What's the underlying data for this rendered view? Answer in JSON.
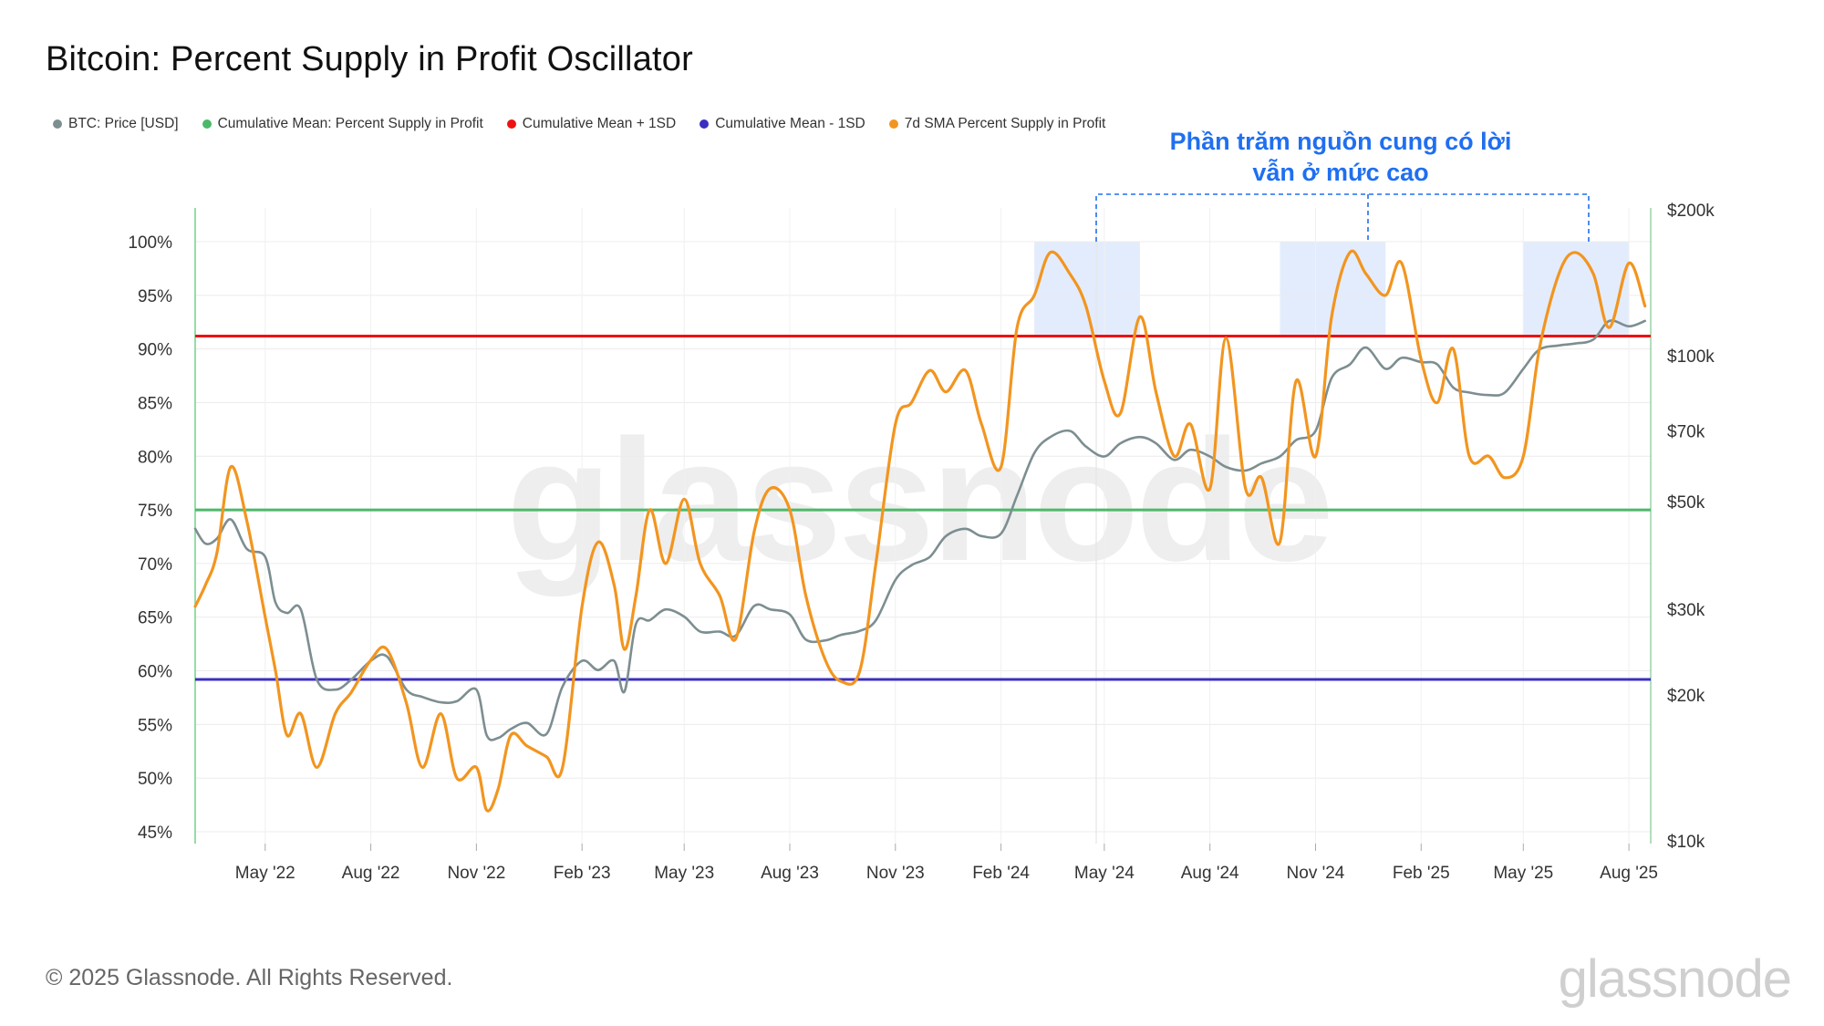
{
  "title": "Bitcoin: Percent Supply in Profit Oscillator",
  "legend": [
    {
      "label": "BTC: Price [USD]",
      "color": "#7d8e90"
    },
    {
      "label": "Cumulative Mean: Percent Supply in Profit",
      "color": "#4db86a"
    },
    {
      "label": "Cumulative Mean + 1SD",
      "color": "#ee1111"
    },
    {
      "label": "Cumulative Mean - 1SD",
      "color": "#3b2fc0"
    },
    {
      "label": "7d SMA Percent Supply in Profit",
      "color": "#f2951f"
    }
  ],
  "annotation": {
    "line1": "Phần trăm nguồn cung có lời",
    "line2": "vẫn ở mức cao"
  },
  "footer": "© 2025 Glassnode. All Rights Reserved.",
  "wordmark": "glassnode",
  "chart_data": {
    "type": "line",
    "title": "Bitcoin: Percent Supply in Profit Oscillator",
    "x_range": [
      "2022-03",
      "2025-08"
    ],
    "x_ticks": [
      "May '22",
      "Aug '22",
      "Nov '22",
      "Feb '23",
      "May '23",
      "Aug '23",
      "Nov '23",
      "Feb '24",
      "May '24",
      "Aug '24",
      "Nov '24",
      "Feb '25",
      "May '25",
      "Aug '25"
    ],
    "y_left": {
      "ticks": [
        "100%",
        "95%",
        "90%",
        "85%",
        "80%",
        "75%",
        "70%",
        "65%",
        "60%",
        "55%",
        "50%",
        "45%"
      ],
      "range": [
        45,
        101
      ]
    },
    "y_right": {
      "scale": "log",
      "ticks": [
        "$200k",
        "$100k",
        "$70k",
        "$50k",
        "$30k",
        "$20k",
        "$10k"
      ],
      "range": [
        10000,
        200000
      ]
    },
    "horizontal_lines": [
      {
        "name": "Cumulative Mean + 1SD",
        "value": 91.2,
        "color": "#ee1111"
      },
      {
        "name": "Cumulative Mean: Percent Supply in Profit",
        "value": 75.0,
        "color": "#4db86a"
      },
      {
        "name": "Cumulative Mean - 1SD",
        "value": 59.2,
        "color": "#3b2fc0"
      }
    ],
    "highlight_ranges": [
      [
        "2024-03",
        "2024-06"
      ],
      [
        "2024-10",
        "2025-01"
      ],
      [
        "2025-05",
        "2025-08"
      ]
    ],
    "series": [
      {
        "name": "7d SMA Percent Supply in Profit",
        "axis": "left",
        "color": "#f2951f",
        "x": [
          "2022-03-01",
          "2022-03-10",
          "2022-03-20",
          "2022-04-01",
          "2022-04-15",
          "2022-05-01",
          "2022-05-10",
          "2022-05-20",
          "2022-06-01",
          "2022-06-15",
          "2022-07-01",
          "2022-07-15",
          "2022-08-01",
          "2022-08-15",
          "2022-09-01",
          "2022-09-15",
          "2022-10-01",
          "2022-10-15",
          "2022-11-01",
          "2022-11-10",
          "2022-11-20",
          "2022-12-01",
          "2022-12-15",
          "2023-01-01",
          "2023-01-15",
          "2023-02-01",
          "2023-02-15",
          "2023-03-01",
          "2023-03-10",
          "2023-03-20",
          "2023-04-01",
          "2023-04-15",
          "2023-05-01",
          "2023-05-15",
          "2023-06-01",
          "2023-06-15",
          "2023-07-01",
          "2023-07-15",
          "2023-08-01",
          "2023-08-15",
          "2023-09-01",
          "2023-09-15",
          "2023-10-01",
          "2023-10-15",
          "2023-11-01",
          "2023-11-15",
          "2023-12-01",
          "2023-12-15",
          "2024-01-01",
          "2024-01-15",
          "2024-02-01",
          "2024-02-15",
          "2024-03-01",
          "2024-03-15",
          "2024-04-01",
          "2024-04-15",
          "2024-05-01",
          "2024-05-15",
          "2024-06-01",
          "2024-06-15",
          "2024-07-01",
          "2024-07-15",
          "2024-08-01",
          "2024-08-15",
          "2024-09-01",
          "2024-09-15",
          "2024-10-01",
          "2024-10-15",
          "2024-11-01",
          "2024-11-15",
          "2024-12-01",
          "2024-12-15",
          "2025-01-01",
          "2025-01-15",
          "2025-02-01",
          "2025-02-15",
          "2025-03-01",
          "2025-03-15",
          "2025-04-01",
          "2025-04-15",
          "2025-05-01",
          "2025-05-15",
          "2025-06-01",
          "2025-06-15",
          "2025-07-01",
          "2025-07-15",
          "2025-08-01",
          "2025-08-15"
        ],
        "y": [
          66,
          68,
          71,
          79,
          74,
          65,
          60,
          54,
          56,
          51,
          56,
          58,
          61,
          62,
          57,
          51,
          56,
          50,
          51,
          47,
          49,
          54,
          53,
          52,
          51,
          66,
          72,
          68,
          62,
          67,
          75,
          70,
          76,
          70,
          67,
          63,
          73,
          77,
          75,
          67,
          61,
          59,
          60,
          70,
          83,
          85,
          88,
          86,
          88,
          83,
          79,
          92,
          95,
          99,
          97,
          94,
          87,
          84,
          93,
          86,
          80,
          83,
          77,
          91,
          77,
          78,
          72,
          87,
          80,
          93,
          99,
          97,
          95,
          98,
          89,
          85,
          90,
          80,
          80,
          78,
          80,
          90,
          97,
          99,
          97,
          92,
          98,
          94
        ]
      },
      {
        "name": "BTC: Price [USD]",
        "axis": "right",
        "color": "#7d8e90",
        "x": [
          "2022-03-01",
          "2022-03-10",
          "2022-03-20",
          "2022-04-01",
          "2022-04-15",
          "2022-05-01",
          "2022-05-10",
          "2022-05-20",
          "2022-06-01",
          "2022-06-15",
          "2022-07-01",
          "2022-07-15",
          "2022-08-01",
          "2022-08-15",
          "2022-09-01",
          "2022-09-15",
          "2022-10-01",
          "2022-10-15",
          "2022-11-01",
          "2022-11-10",
          "2022-11-20",
          "2022-12-01",
          "2022-12-15",
          "2023-01-01",
          "2023-01-15",
          "2023-02-01",
          "2023-02-15",
          "2023-03-01",
          "2023-03-10",
          "2023-03-20",
          "2023-04-01",
          "2023-04-15",
          "2023-05-01",
          "2023-05-15",
          "2023-06-01",
          "2023-06-15",
          "2023-07-01",
          "2023-07-15",
          "2023-08-01",
          "2023-08-15",
          "2023-09-01",
          "2023-09-15",
          "2023-10-01",
          "2023-10-15",
          "2023-11-01",
          "2023-11-15",
          "2023-12-01",
          "2023-12-15",
          "2024-01-01",
          "2024-01-15",
          "2024-02-01",
          "2024-02-15",
          "2024-03-01",
          "2024-03-15",
          "2024-04-01",
          "2024-04-15",
          "2024-05-01",
          "2024-05-15",
          "2024-06-01",
          "2024-06-15",
          "2024-07-01",
          "2024-07-15",
          "2024-08-01",
          "2024-08-15",
          "2024-09-01",
          "2024-09-15",
          "2024-10-01",
          "2024-10-15",
          "2024-11-01",
          "2024-11-15",
          "2024-12-01",
          "2024-12-15",
          "2025-01-01",
          "2025-01-15",
          "2025-02-01",
          "2025-02-15",
          "2025-03-01",
          "2025-03-15",
          "2025-04-01",
          "2025-04-15",
          "2025-05-01",
          "2025-05-15",
          "2025-06-01",
          "2025-06-15",
          "2025-07-01",
          "2025-07-15",
          "2025-08-01",
          "2025-08-15"
        ],
        "y": [
          44000,
          41000,
          42000,
          46000,
          40000,
          38500,
          31000,
          29500,
          30000,
          21500,
          20500,
          21500,
          23500,
          24000,
          20500,
          19800,
          19300,
          19400,
          20500,
          16500,
          16300,
          17000,
          17500,
          16600,
          20800,
          23500,
          22500,
          23500,
          20300,
          28000,
          28500,
          30000,
          29000,
          27000,
          27000,
          26500,
          30500,
          30000,
          29300,
          26000,
          25900,
          26600,
          27100,
          28500,
          34500,
          37000,
          38500,
          42500,
          44000,
          42500,
          43000,
          51500,
          63000,
          68000,
          70000,
          65000,
          62000,
          66000,
          68000,
          66000,
          61000,
          64000,
          62000,
          59000,
          58000,
          60000,
          62000,
          67000,
          70000,
          90000,
          96000,
          104000,
          94000,
          99000,
          97000,
          96000,
          86000,
          84000,
          83000,
          84000,
          94000,
          103000,
          105000,
          106000,
          108000,
          118000,
          115000,
          118000
        ]
      }
    ]
  }
}
